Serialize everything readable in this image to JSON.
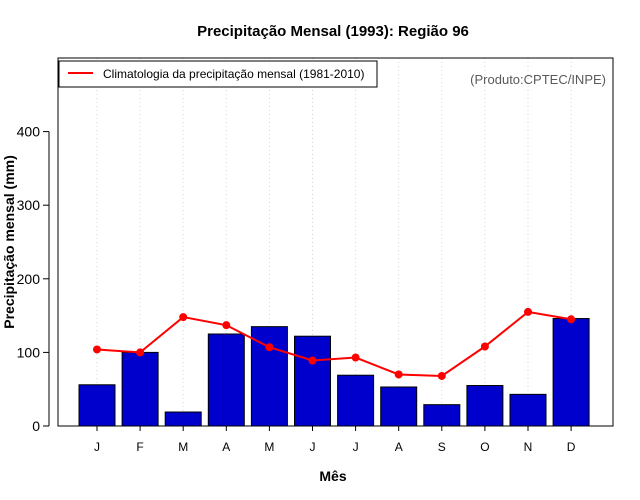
{
  "chart_data": {
    "type": "bar",
    "title": "Precipitação Mensal (1993): Região 96",
    "xlabel": "Mês",
    "ylabel": "Precipitação mensal (mm)",
    "ylim": [
      0,
      500
    ],
    "yticks": [
      0,
      100,
      200,
      300,
      400
    ],
    "grid": "vertical-dotted",
    "legend_position": "top-left",
    "credit": "(Produto:CPTEC/INPE)",
    "categories": [
      "J",
      "F",
      "M",
      "A",
      "M",
      "J",
      "J",
      "A",
      "S",
      "O",
      "N",
      "D"
    ],
    "series": [
      {
        "name": "Precipitação mensal 1993",
        "type": "bar",
        "color": "#0000cd",
        "values": [
          56,
          100,
          19,
          125,
          135,
          122,
          69,
          53,
          29,
          55,
          43,
          146
        ]
      },
      {
        "name": "Climatologia da precipitação mensal (1981-2010)",
        "type": "line",
        "color": "#ff0000",
        "values": [
          104,
          100,
          148,
          137,
          107,
          89,
          93,
          70,
          68,
          108,
          155,
          145
        ]
      }
    ]
  }
}
